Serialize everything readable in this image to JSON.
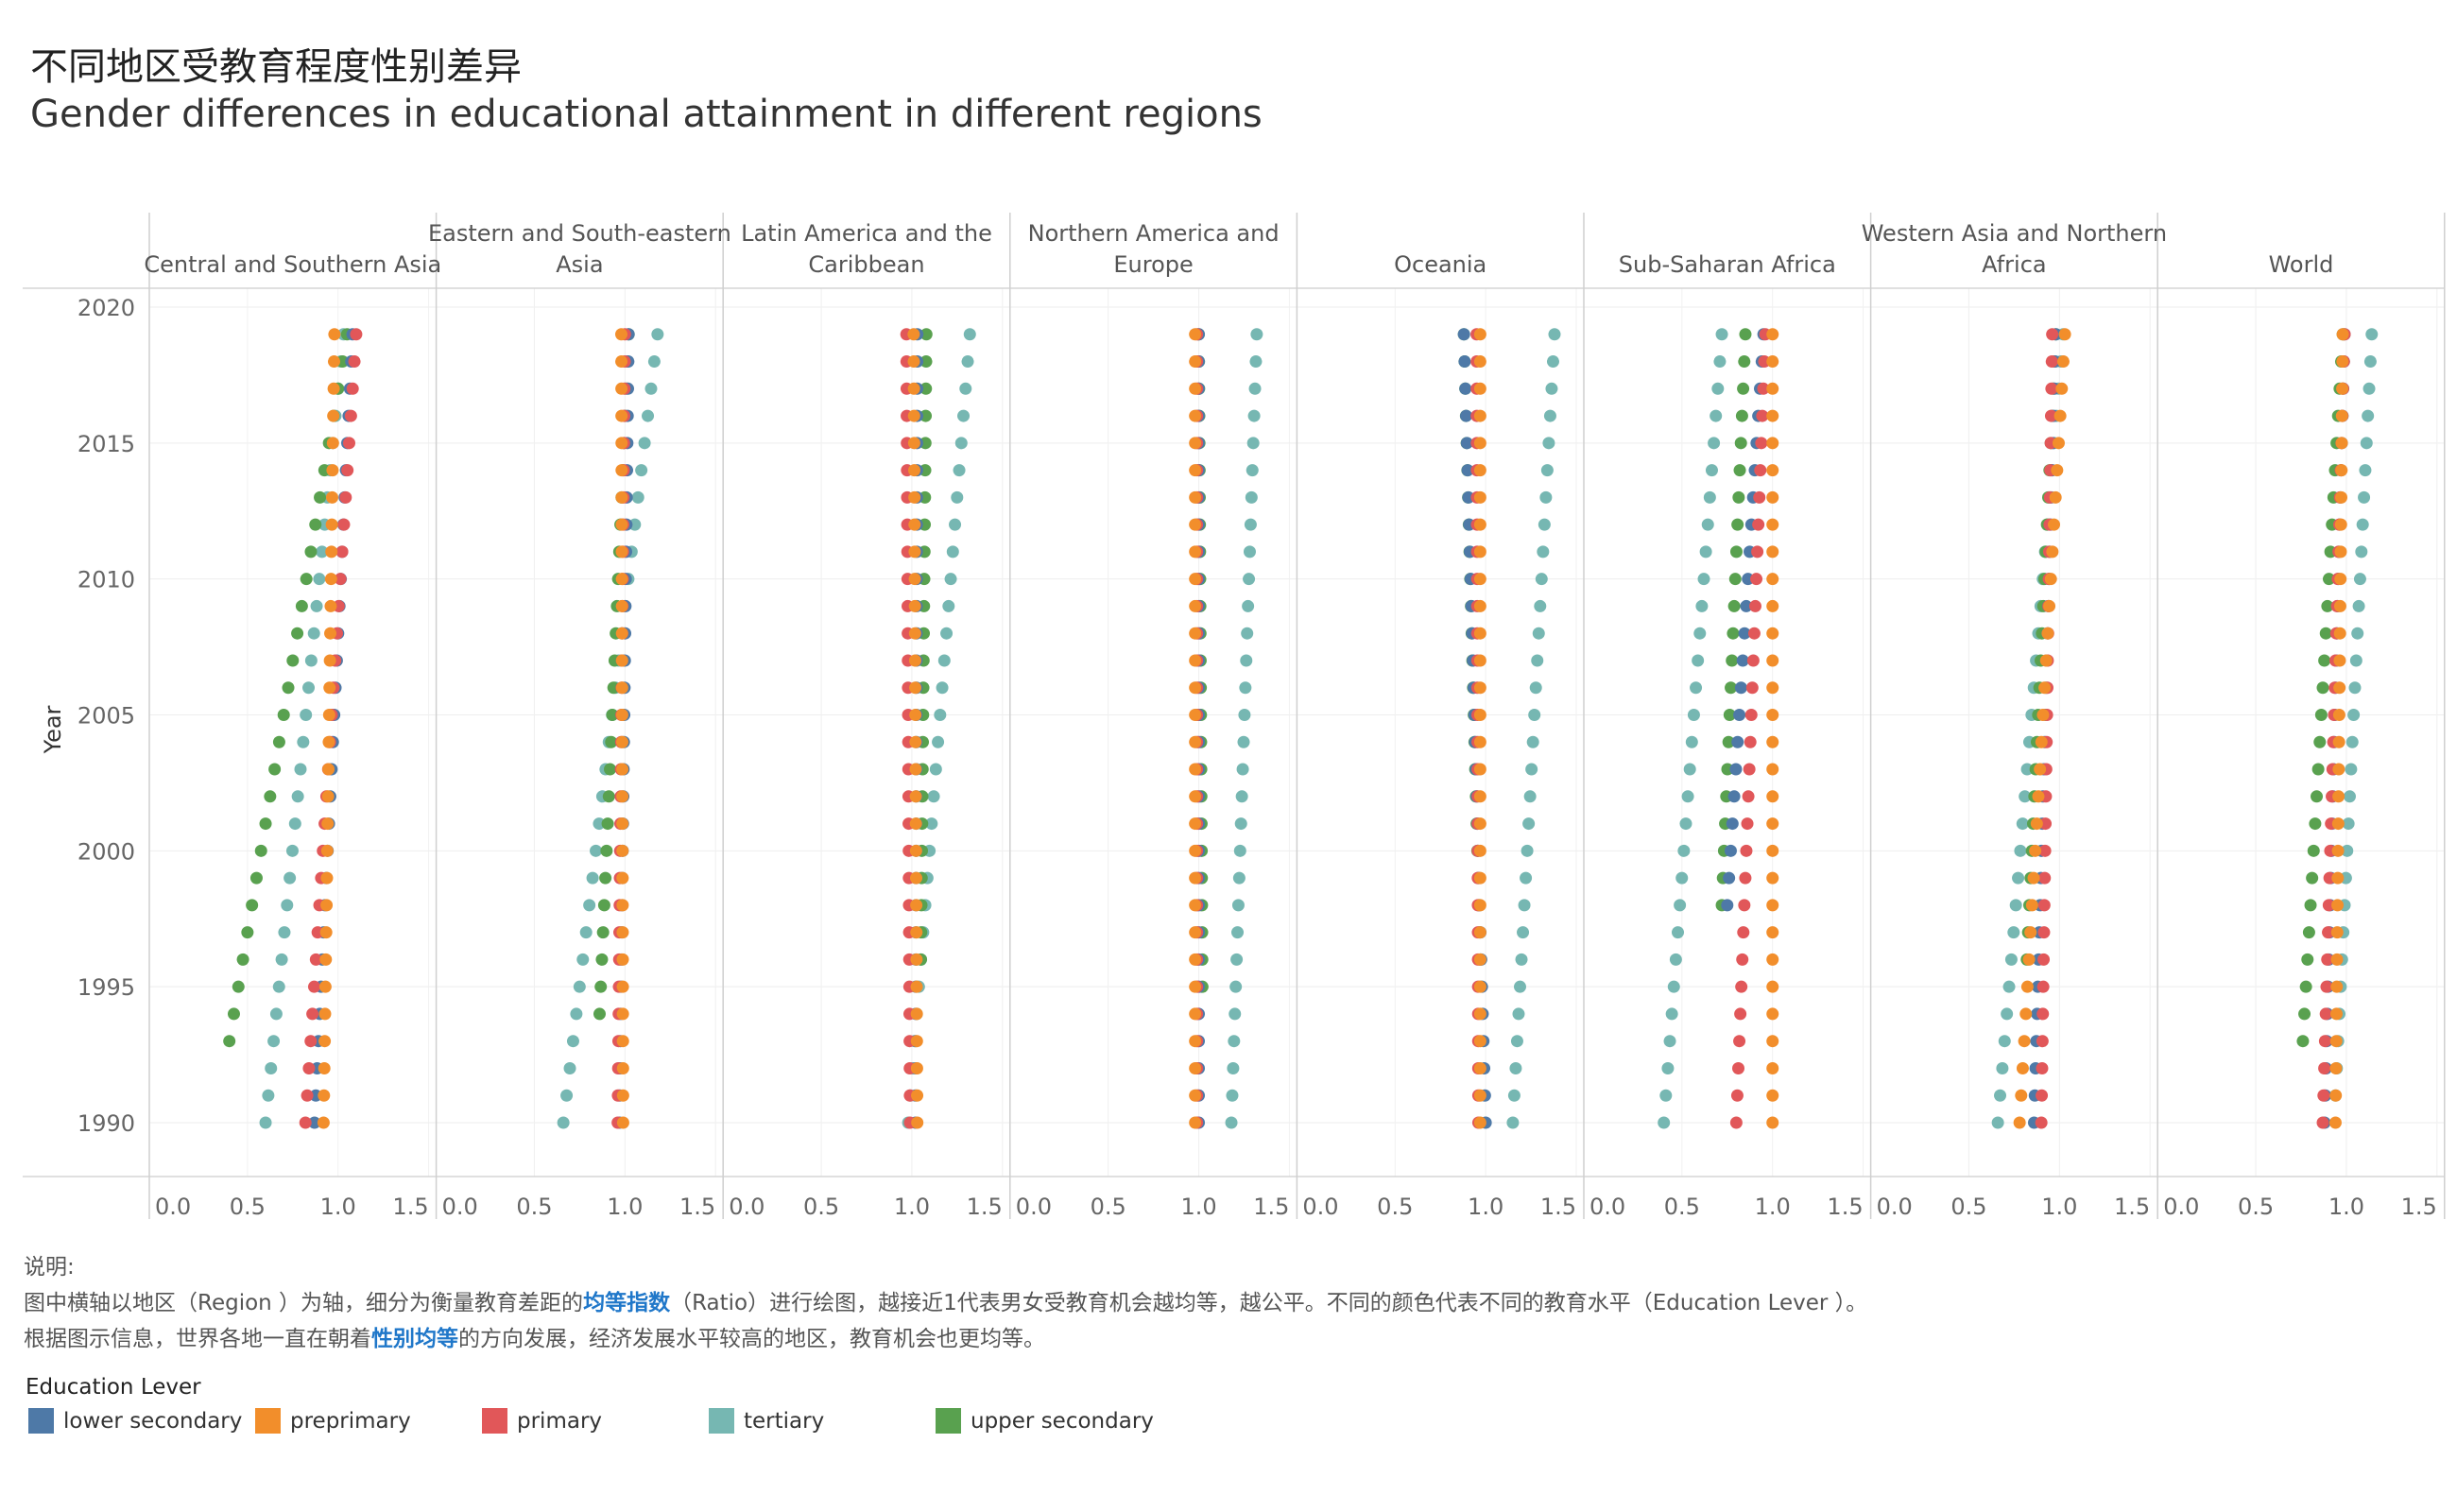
{
  "title_cn": "不同地区受教育程度性别差异",
  "title_en": "Gender differences in educational attainment in different regions",
  "notes": {
    "label": "说明:",
    "line1_prefix": "图中横轴以地区（Region ）为轴，细分为衡量教育差距的",
    "line1_highlight": "均等指数",
    "line1_suffix": "（Ratio）进行绘图，越接近1代表男女受教育机会越均等，越公平。不同的颜色代表不同的教育水平（Education Lever ）。",
    "line2_prefix": "根据图示信息，世界各地一直在朝着",
    "line2_highlight": "性别均等",
    "line2_suffix": "的方向发展，经济发展水平较高的地区，教育机会也更均等。"
  },
  "legend": {
    "title": "Education Lever",
    "items": [
      {
        "label": "lower secondary",
        "color": "#4e79a7"
      },
      {
        "label": "preprimary",
        "color": "#f28e2b"
      },
      {
        "label": "primary",
        "color": "#e15759"
      },
      {
        "label": "tertiary",
        "color": "#76b7b2"
      },
      {
        "label": "upper secondary",
        "color": "#59a14f"
      }
    ]
  },
  "chart_data": {
    "type": "scatter",
    "ylabel": "Year",
    "xlabel": "",
    "ylim": [
      1990,
      2020
    ],
    "xlim": [
      0,
      1.5
    ],
    "yticks": [
      "2020",
      "2015",
      "2010",
      "2005",
      "2000",
      "1995",
      "1990"
    ],
    "xticks": [
      "0.0",
      "0.5",
      "1.0",
      "1.5"
    ],
    "grid": true,
    "series_order": [
      "tertiary",
      "upper secondary",
      "lower secondary",
      "primary",
      "preprimary"
    ],
    "series_colors": {
      "lower secondary": "#4e79a7",
      "preprimary": "#f28e2b",
      "primary": "#e15759",
      "tertiary": "#76b7b2",
      "upper secondary": "#59a14f"
    },
    "panels": [
      {
        "region": "Central and Southern Asia",
        "series": {
          "lower secondary": {
            "start": [
              1990,
              0.87
            ],
            "end": [
              2019,
              1.08
            ]
          },
          "preprimary": {
            "start": [
              1990,
              0.92
            ],
            "end": [
              2019,
              0.98
            ]
          },
          "primary": {
            "start": [
              1990,
              0.82
            ],
            "end": [
              2019,
              1.1
            ]
          },
          "tertiary": {
            "start": [
              1990,
              0.6
            ],
            "end": [
              2019,
              1.03
            ]
          },
          "upper secondary": {
            "start": [
              1993,
              0.4
            ],
            "end": [
              2019,
              1.05
            ]
          }
        }
      },
      {
        "region": "Eastern and South-eastern Asia",
        "series": {
          "lower secondary": {
            "start": [
              1990,
              0.97
            ],
            "end": [
              2019,
              1.02
            ]
          },
          "preprimary": {
            "start": [
              1990,
              0.99
            ],
            "end": [
              2019,
              0.98
            ]
          },
          "primary": {
            "start": [
              1990,
              0.96
            ],
            "end": [
              2019,
              1.0
            ]
          },
          "tertiary": {
            "start": [
              1990,
              0.66
            ],
            "end": [
              2019,
              1.18
            ]
          },
          "upper secondary": {
            "start": [
              1994,
              0.86
            ],
            "end": [
              2019,
              1.02
            ]
          }
        }
      },
      {
        "region": "Latin America and the Caribbean",
        "series": {
          "lower secondary": {
            "start": [
              1990,
              1.02
            ],
            "end": [
              2019,
              1.03
            ]
          },
          "preprimary": {
            "start": [
              1990,
              1.03
            ],
            "end": [
              2019,
              1.01
            ]
          },
          "primary": {
            "start": [
              1990,
              0.99
            ],
            "end": [
              2019,
              0.97
            ]
          },
          "tertiary": {
            "start": [
              1990,
              0.98
            ],
            "end": [
              2019,
              1.32
            ]
          },
          "upper secondary": {
            "start": [
              1996,
              1.05
            ],
            "end": [
              2019,
              1.08
            ]
          }
        }
      },
      {
        "region": "Northern America and Europe",
        "series": {
          "lower secondary": {
            "start": [
              1990,
              1.0
            ],
            "end": [
              2019,
              1.0
            ]
          },
          "preprimary": {
            "start": [
              1990,
              0.98
            ],
            "end": [
              2019,
              0.98
            ]
          },
          "primary": {
            "start": [
              1990,
              0.99
            ],
            "end": [
              2019,
              0.99
            ]
          },
          "tertiary": {
            "start": [
              1990,
              1.18
            ],
            "end": [
              2019,
              1.32
            ]
          },
          "upper secondary": {
            "start": [
              1995,
              1.02
            ],
            "end": [
              2019,
              1.0
            ]
          }
        }
      },
      {
        "region": "Oceania",
        "series": {
          "lower secondary": {
            "start": [
              1990,
              1.0
            ],
            "end": [
              2019,
              0.88
            ]
          },
          "preprimary": {
            "start": [
              1990,
              0.97
            ],
            "end": [
              2019,
              0.97
            ]
          },
          "primary": {
            "start": [
              1990,
              0.96
            ],
            "end": [
              2019,
              0.95
            ]
          },
          "tertiary": {
            "start": [
              1990,
              1.15
            ],
            "end": [
              2019,
              1.38
            ]
          },
          "upper secondary": {
            "start": [
              1996,
              0.97
            ],
            "end": [
              2019,
              0.88
            ]
          }
        }
      },
      {
        "region": "Sub-Saharan Africa",
        "series": {
          "lower secondary": {
            "start": [
              1998,
              0.75
            ],
            "end": [
              2019,
              0.95
            ]
          },
          "preprimary": {
            "start": [
              1990,
              1.0
            ],
            "end": [
              2019,
              1.0
            ]
          },
          "primary": {
            "start": [
              1990,
              0.8
            ],
            "end": [
              2019,
              0.96
            ]
          },
          "tertiary": {
            "start": [
              1990,
              0.4
            ],
            "end": [
              2019,
              0.72
            ]
          },
          "upper secondary": {
            "start": [
              1998,
              0.72
            ],
            "end": [
              2019,
              0.85
            ]
          }
        }
      },
      {
        "region": "Western Asia and Northern Africa",
        "series": {
          "lower secondary": {
            "start": [
              1990,
              0.86
            ],
            "end": [
              2019,
              0.98
            ]
          },
          "preprimary": {
            "start": [
              1990,
              0.78
            ],
            "end": [
              2019,
              1.03
            ]
          },
          "primary": {
            "start": [
              1990,
              0.9
            ],
            "end": [
              2019,
              0.96
            ]
          },
          "tertiary": {
            "start": [
              1990,
              0.66
            ],
            "end": [
              2019,
              1.02
            ]
          },
          "upper secondary": {
            "start": [
              1996,
              0.82
            ],
            "end": [
              2019,
              0.98
            ]
          }
        }
      },
      {
        "region": "World",
        "series": {
          "lower secondary": {
            "start": [
              1990,
              0.88
            ],
            "end": [
              2019,
              0.99
            ]
          },
          "preprimary": {
            "start": [
              1990,
              0.94
            ],
            "end": [
              2019,
              0.98
            ]
          },
          "primary": {
            "start": [
              1990,
              0.87
            ],
            "end": [
              2019,
              0.99
            ]
          },
          "tertiary": {
            "start": [
              1991,
              0.94
            ],
            "end": [
              2019,
              1.14
            ]
          },
          "upper secondary": {
            "start": [
              1993,
              0.76
            ],
            "end": [
              2019,
              0.98
            ]
          }
        }
      }
    ]
  }
}
